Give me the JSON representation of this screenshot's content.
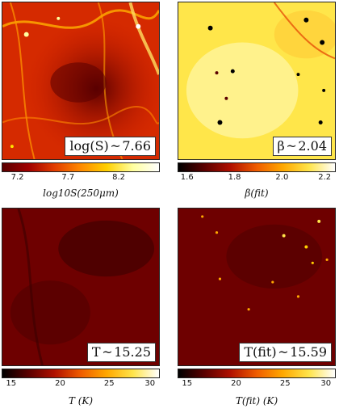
{
  "panels": [
    {
      "name": "logS",
      "label": "log(S) ~ 7.66",
      "axis_label": "log10S(250μm)",
      "ticks": [
        "7.2",
        "7.7",
        "8.2"
      ],
      "colormap": [
        "#5a0000",
        "#a00000",
        "#e23d00",
        "#ff8a00",
        "#ffd000",
        "#ffffa0",
        "#ffffff"
      ]
    },
    {
      "name": "beta",
      "label": "β ~ 2.04",
      "axis_label": "β(fit)",
      "ticks": [
        "1.6",
        "1.8",
        "2.0",
        "2.2"
      ],
      "colormap": [
        "#000000",
        "#5a0000",
        "#b01000",
        "#ef5c00",
        "#ffa800",
        "#ffe44a",
        "#ffffff"
      ]
    },
    {
      "name": "T",
      "label": "T ~ 15.25",
      "axis_label": "T (K)",
      "ticks": [
        "15",
        "20",
        "25",
        "30"
      ],
      "colormap": [
        "#000000",
        "#5a0000",
        "#b01000",
        "#ef5c00",
        "#ffa800",
        "#ffe44a",
        "#ffffff"
      ]
    },
    {
      "name": "Tfit",
      "label": "T(fit) ~ 15.59",
      "axis_label": "T(fit) (K)",
      "ticks": [
        "15",
        "20",
        "25",
        "30"
      ],
      "colormap": [
        "#000000",
        "#5a0000",
        "#b01000",
        "#ef5c00",
        "#ffa800",
        "#ffe44a",
        "#ffffff"
      ]
    }
  ]
}
